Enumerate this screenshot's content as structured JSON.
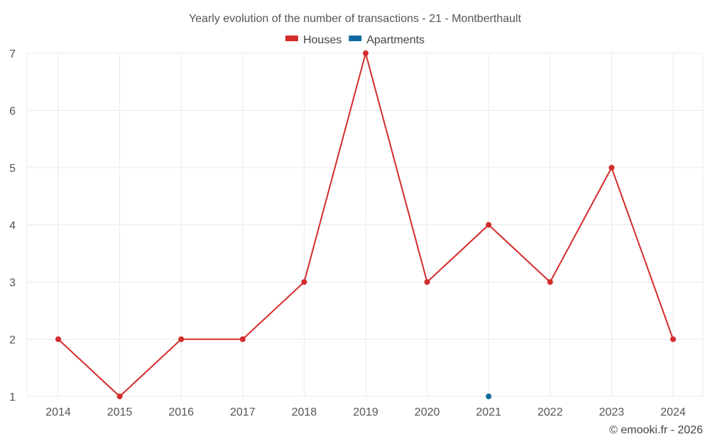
{
  "chart_data": {
    "type": "line",
    "title": "Yearly evolution of the number of transactions - 21 - Montberthault",
    "xlabel": "",
    "ylabel": "",
    "categories": [
      "2014",
      "2015",
      "2016",
      "2017",
      "2018",
      "2019",
      "2020",
      "2021",
      "2022",
      "2023",
      "2024"
    ],
    "ylim": [
      1,
      7
    ],
    "yticks": [
      1,
      2,
      3,
      4,
      5,
      6,
      7
    ],
    "grid": true,
    "legend_position": "top",
    "series": [
      {
        "name": "Houses",
        "color": "#d42b2b",
        "values": [
          2,
          1,
          2,
          2,
          3,
          7,
          3,
          4,
          3,
          5,
          2
        ]
      },
      {
        "name": "Apartments",
        "color": "#0f6aa0",
        "values": [
          null,
          null,
          null,
          null,
          null,
          null,
          null,
          1,
          null,
          null,
          null
        ]
      }
    ]
  },
  "credit": "© emooki.fr - 2026"
}
